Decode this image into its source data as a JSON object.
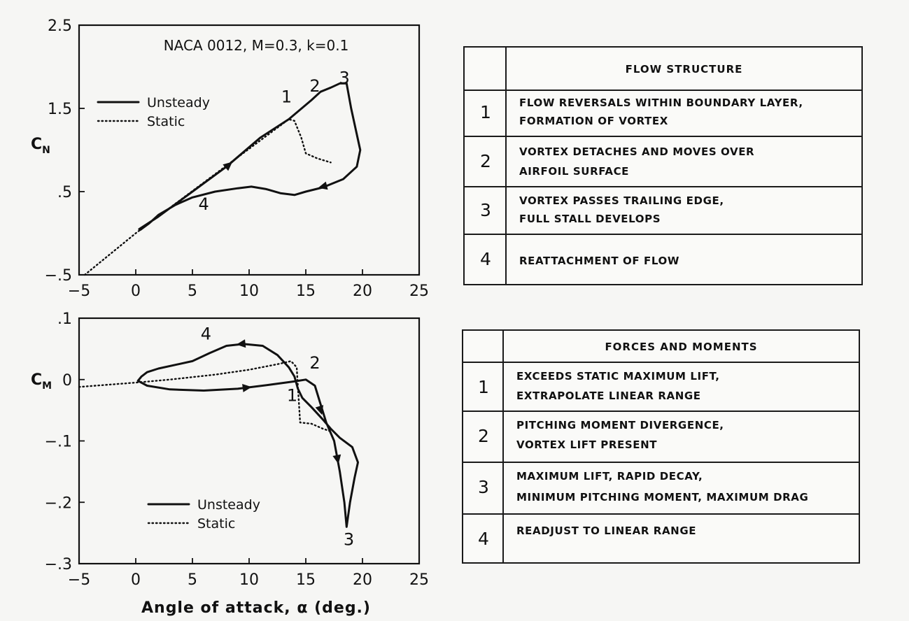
{
  "chart_data": [
    {
      "type": "line",
      "title": "NACA 0012, M=0.3, k=0.1",
      "xlabel": "",
      "ylabel": "C_N",
      "xlim": [
        -5,
        25
      ],
      "ylim": [
        -0.5,
        2.5
      ],
      "xticks": [
        "−5",
        "0",
        "5",
        "10",
        "15",
        "20",
        "25"
      ],
      "yticks": [
        "−.5",
        ".5",
        "1.5",
        "2.5"
      ],
      "legend": {
        "placement": "top-left",
        "entries": [
          {
            "label": "Unsteady",
            "style": "solid"
          },
          {
            "label": "Static",
            "style": "dotted"
          }
        ]
      },
      "series": [
        {
          "name": "Unsteady",
          "style": "solid",
          "points": [
            [
              0.3,
              0.05
            ],
            [
              2,
              0.2
            ],
            [
              5,
              0.5
            ],
            [
              8,
              0.8
            ],
            [
              11,
              1.15
            ],
            [
              13.5,
              1.37
            ],
            [
              15.5,
              1.6
            ],
            [
              16.3,
              1.7
            ],
            [
              17.2,
              1.75
            ],
            [
              18,
              1.8
            ],
            [
              18.6,
              1.8
            ],
            [
              19,
              1.5
            ],
            [
              19.4,
              1.25
            ],
            [
              19.8,
              1.0
            ],
            [
              19.5,
              0.8
            ],
            [
              18.3,
              0.65
            ],
            [
              16.5,
              0.55
            ],
            [
              15,
              0.5
            ],
            [
              14,
              0.46
            ],
            [
              12.8,
              0.48
            ],
            [
              11.5,
              0.53
            ],
            [
              10.2,
              0.56
            ],
            [
              9,
              0.54
            ],
            [
              7,
              0.5
            ],
            [
              5,
              0.43
            ],
            [
              3.5,
              0.34
            ],
            [
              2,
              0.22
            ],
            [
              1.2,
              0.12
            ],
            [
              0.4,
              0.04
            ]
          ],
          "arrows": [
            [
              8.2,
              0.82
            ],
            [
              16.5,
              0.56
            ]
          ]
        },
        {
          "name": "Static",
          "style": "dotted",
          "points": [
            [
              -4.5,
              -0.5
            ],
            [
              0,
              0
            ],
            [
              13.5,
              1.37
            ],
            [
              14,
              1.35
            ],
            [
              14.6,
              1.15
            ],
            [
              15,
              0.96
            ],
            [
              16,
              0.9
            ],
            [
              17.2,
              0.85
            ]
          ]
        }
      ],
      "annotations": [
        {
          "text": "1",
          "x": 13.3,
          "y": 1.57
        },
        {
          "text": "2",
          "x": 15.8,
          "y": 1.7
        },
        {
          "text": "3",
          "x": 18.4,
          "y": 1.8
        },
        {
          "text": "4",
          "x": 6,
          "y": 0.28
        }
      ]
    },
    {
      "type": "line",
      "title": "",
      "xlabel": "Angle of attack, α (deg.)",
      "ylabel": "C_M",
      "xlim": [
        -5,
        25
      ],
      "ylim": [
        -0.3,
        0.1
      ],
      "xticks": [
        "−5",
        "0",
        "5",
        "10",
        "15",
        "20",
        "25"
      ],
      "yticks": [
        "−.3",
        "−.2",
        "−.1",
        "0",
        ".1"
      ],
      "legend": {
        "placement": "bottom-left",
        "entries": [
          {
            "label": "Unsteady",
            "style": "solid"
          },
          {
            "label": "Static",
            "style": "dotted"
          }
        ]
      },
      "series": [
        {
          "name": "Unsteady",
          "style": "solid",
          "points": [
            [
              0.2,
              -0.002
            ],
            [
              1,
              -0.01
            ],
            [
              3,
              -0.016
            ],
            [
              6,
              -0.018
            ],
            [
              9,
              -0.015
            ],
            [
              12,
              -0.008
            ],
            [
              14,
              -0.003
            ],
            [
              15,
              0.0
            ],
            [
              15.8,
              -0.01
            ],
            [
              16.3,
              -0.04
            ],
            [
              16.8,
              -0.07
            ],
            [
              17.5,
              -0.1
            ],
            [
              18,
              -0.15
            ],
            [
              18.4,
              -0.2
            ],
            [
              18.6,
              -0.24
            ],
            [
              18.9,
              -0.2
            ],
            [
              19.3,
              -0.16
            ],
            [
              19.6,
              -0.135
            ],
            [
              19.1,
              -0.11
            ],
            [
              18,
              -0.095
            ],
            [
              17.2,
              -0.08
            ],
            [
              16.5,
              -0.065
            ],
            [
              15.5,
              -0.045
            ],
            [
              14.7,
              -0.03
            ],
            [
              14.3,
              -0.015
            ],
            [
              14,
              0.005
            ],
            [
              13.5,
              0.02
            ],
            [
              12.5,
              0.04
            ],
            [
              11.2,
              0.055
            ],
            [
              9.5,
              0.058
            ],
            [
              8,
              0.055
            ],
            [
              6.5,
              0.043
            ],
            [
              5,
              0.03
            ],
            [
              3.5,
              0.024
            ],
            [
              2,
              0.018
            ],
            [
              1,
              0.012
            ],
            [
              0.5,
              0.005
            ],
            [
              0.2,
              -0.002
            ]
          ],
          "arrows": [
            [
              9.8,
              -0.013
            ],
            [
              16.3,
              -0.05
            ],
            [
              17.8,
              -0.13
            ],
            [
              9.3,
              0.058
            ]
          ]
        },
        {
          "name": "Static",
          "style": "dotted",
          "points": [
            [
              -5,
              -0.012
            ],
            [
              0,
              -0.005
            ],
            [
              3,
              0.0
            ],
            [
              7,
              0.008
            ],
            [
              10,
              0.016
            ],
            [
              12.5,
              0.025
            ],
            [
              13.7,
              0.03
            ],
            [
              14.2,
              0.02
            ],
            [
              14.5,
              -0.07
            ],
            [
              15.5,
              -0.072
            ],
            [
              16.5,
              -0.08
            ],
            [
              17.3,
              -0.085
            ]
          ]
        }
      ],
      "annotations": [
        {
          "text": "1",
          "x": 13.8,
          "y": -0.035
        },
        {
          "text": "2",
          "x": 15.8,
          "y": 0.018
        },
        {
          "text": "3",
          "x": 18.8,
          "y": -0.27
        },
        {
          "text": "4",
          "x": 6.2,
          "y": 0.065
        }
      ]
    }
  ],
  "tables": [
    {
      "header": "FLOW STRUCTURE",
      "rows": [
        {
          "num": "1",
          "lines": [
            "FLOW REVERSALS WITHIN BOUNDARY LAYER,",
            "FORMATION OF VORTEX"
          ]
        },
        {
          "num": "2",
          "lines": [
            "VORTEX DETACHES AND MOVES OVER",
            "AIRFOIL SURFACE"
          ]
        },
        {
          "num": "3",
          "lines": [
            "VORTEX PASSES TRAILING EDGE,",
            "FULL STALL DEVELOPS"
          ]
        },
        {
          "num": "4",
          "lines": [
            "REATTACHMENT OF FLOW",
            ""
          ]
        }
      ]
    },
    {
      "header": "FORCES AND MOMENTS",
      "rows": [
        {
          "num": "1",
          "lines": [
            "EXCEEDS STATIC MAXIMUM LIFT,",
            "EXTRAPOLATE LINEAR RANGE"
          ]
        },
        {
          "num": "2",
          "lines": [
            "PITCHING MOMENT DIVERGENCE,",
            "VORTEX LIFT PRESENT"
          ]
        },
        {
          "num": "3",
          "lines": [
            "MAXIMUM LIFT, RAPID DECAY,",
            "MINIMUM PITCHING MOMENT, MAXIMUM DRAG"
          ]
        },
        {
          "num": "4",
          "lines": [
            "READJUST TO LINEAR RANGE",
            ""
          ]
        }
      ]
    }
  ],
  "colors": {
    "ink": "#111111",
    "paper": "#f6f6f4"
  }
}
